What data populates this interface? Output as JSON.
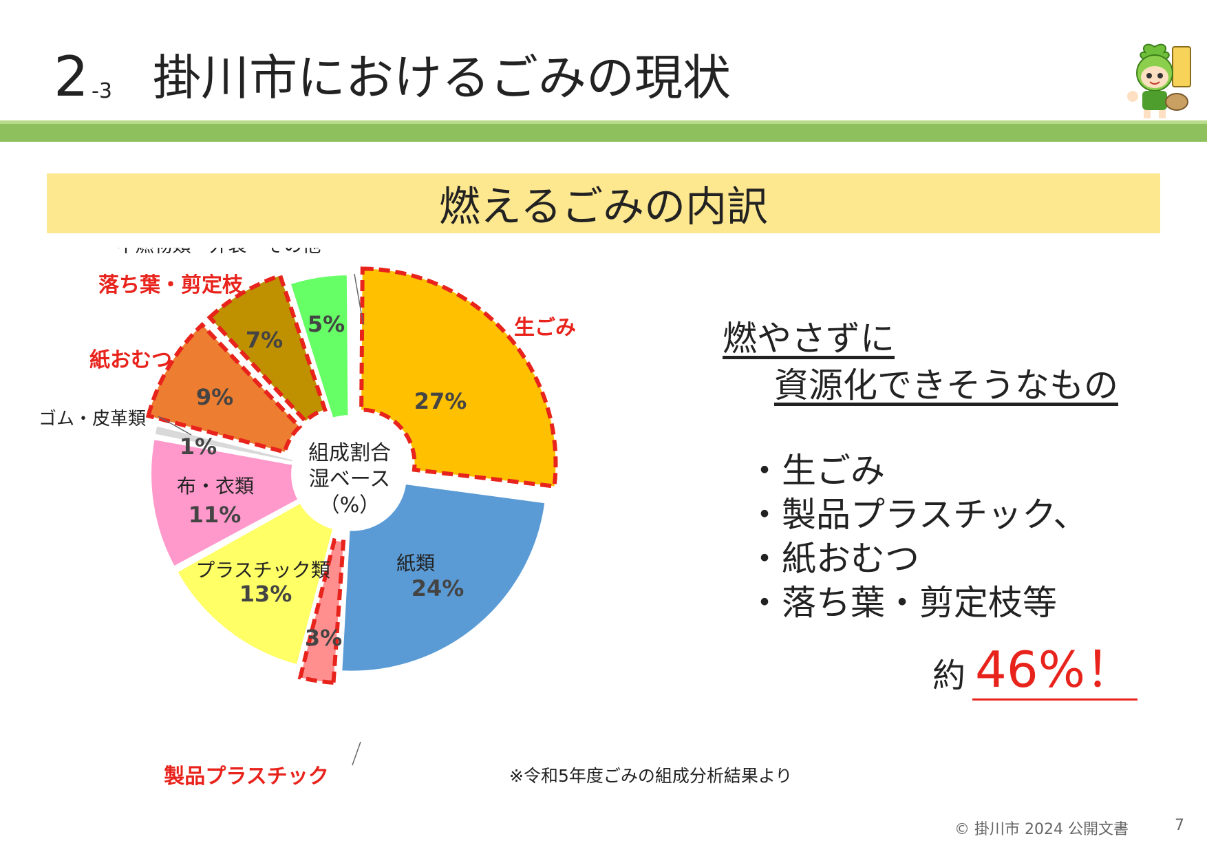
{
  "header": {
    "number": "2",
    "sub": "-3",
    "title": "掛川市におけるごみの現状"
  },
  "banner": {
    "title": "燃えるごみの内訳"
  },
  "chart_data": {
    "type": "pie",
    "center_label": [
      "組成割合",
      "湿ベース",
      "（%）"
    ],
    "slices": [
      {
        "name": "生ごみ",
        "value": 27,
        "label": "27%",
        "color": "#ffc000",
        "highlight": true
      },
      {
        "name": "紙類",
        "value": 24,
        "label": "24%",
        "color": "#5b9bd5",
        "highlight": false
      },
      {
        "name": "製品プラスチック",
        "value": 3,
        "label": "3%",
        "color": "#ff8f8f",
        "highlight": true
      },
      {
        "name": "プラスチック類",
        "value": 13,
        "label": "13%",
        "color": "#ffff66",
        "highlight": false
      },
      {
        "name": "布・衣類",
        "value": 11,
        "label": "11%",
        "color": "#ff99cc",
        "highlight": false
      },
      {
        "name": "ゴム・皮革類",
        "value": 1,
        "label": "1%",
        "color": "#d9d9d9",
        "highlight": false
      },
      {
        "name": "紙おむつ",
        "value": 9,
        "label": "9%",
        "color": "#ed7d31",
        "highlight": true
      },
      {
        "name": "落ち葉・剪定枝",
        "value": 7,
        "label": "7%",
        "color": "#bf9000",
        "highlight": true
      },
      {
        "name": "不燃物類・外袋・その他",
        "value": 5,
        "label": "5%",
        "color": "#66ff66",
        "highlight": false
      }
    ],
    "highlight_color": "#e8231c"
  },
  "side": {
    "heading1": "燃やさずに",
    "heading2": "資源化できそうなもの",
    "items": [
      "・生ごみ",
      "・製品プラスチック、",
      "・紙おむつ",
      "・落ち葉・剪定枝等"
    ],
    "summary_prefix": "約",
    "summary_value": "46%！"
  },
  "note": "※令和5年度ごみの組成分析結果より",
  "footer": {
    "copyright": "© 掛川市 2024 公開文書",
    "page": "7"
  }
}
